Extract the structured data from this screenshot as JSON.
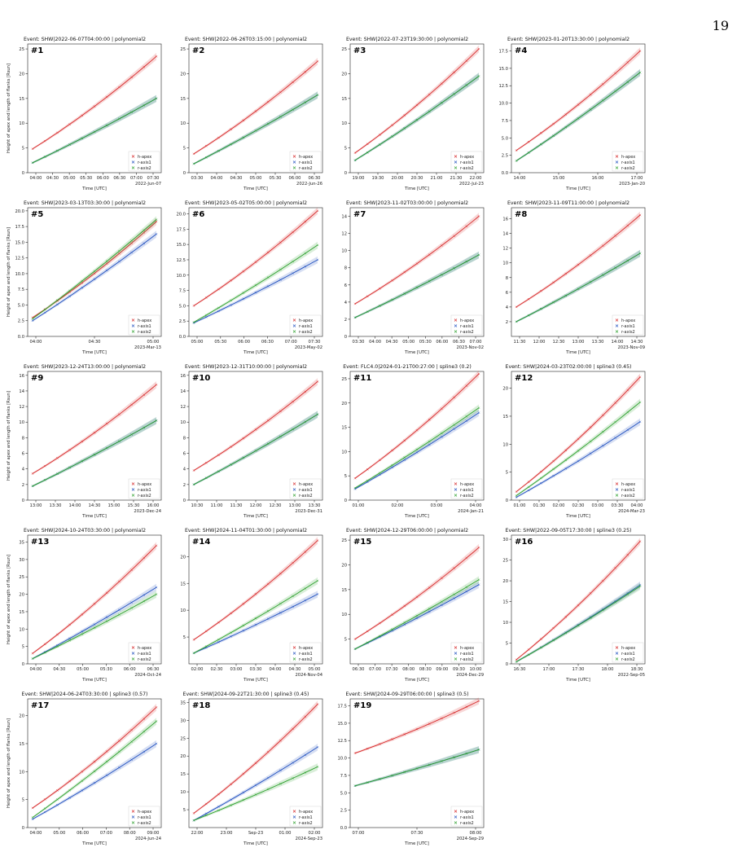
{
  "page_number": "19",
  "y_axis_label": "Height of apex and length of flanks [Rsun]",
  "x_axis_label": "Time [UTC]",
  "legend": [
    "h-apex",
    "r-axis1",
    "r-axis2"
  ],
  "colors": {
    "h_apex": "#d62728",
    "r_axis1": "#1f4fbf",
    "r_axis2": "#2ca02c"
  },
  "chart_data": [
    {
      "type": "line",
      "panel": "#1",
      "title": "Event: SHW|2022-06-07T04:00:00 | polynomial2",
      "date_label": "2022-Jun-07",
      "x_ticks": [
        "04:00",
        "04:30",
        "05:00",
        "05:30",
        "06:00",
        "06:30",
        "07:00",
        "07:30"
      ],
      "y_ticks": [
        "0",
        "5",
        "10",
        "15",
        "20",
        "25"
      ],
      "ylim": [
        0,
        26
      ],
      "series": [
        {
          "name": "h-apex",
          "values": [
            4.8,
            23.5
          ]
        },
        {
          "name": "r-axis1",
          "values": [
            2.0,
            15.0
          ]
        },
        {
          "name": "r-axis2",
          "values": [
            2.0,
            15.0
          ]
        }
      ]
    },
    {
      "type": "line",
      "panel": "#2",
      "title": "Event: SHW|2022-06-26T03:15:00 | polynomial2",
      "date_label": "2022-Jun-26",
      "x_ticks": [
        "03:30",
        "04:00",
        "04:30",
        "05:00",
        "05:30",
        "06:00",
        "06:30"
      ],
      "y_ticks": [
        "0",
        "5",
        "10",
        "15",
        "20",
        "25"
      ],
      "ylim": [
        0,
        26
      ],
      "series": [
        {
          "name": "h-apex",
          "values": [
            3.8,
            22.5
          ]
        },
        {
          "name": "r-axis1",
          "values": [
            1.8,
            15.7
          ]
        },
        {
          "name": "r-axis2",
          "values": [
            1.8,
            15.7
          ]
        }
      ]
    },
    {
      "type": "line",
      "panel": "#3",
      "title": "Event: SHW|2022-07-23T19:30:00 | polynomial2",
      "date_label": "2022-Jul-23",
      "x_ticks": [
        "19:00",
        "19:30",
        "20:00",
        "20:30",
        "21:00",
        "21:30",
        "22:00"
      ],
      "y_ticks": [
        "0",
        "5",
        "10",
        "15",
        "20",
        "25"
      ],
      "ylim": [
        0,
        26
      ],
      "series": [
        {
          "name": "h-apex",
          "values": [
            4.0,
            25.0
          ]
        },
        {
          "name": "r-axis1",
          "values": [
            2.5,
            19.5
          ]
        },
        {
          "name": "r-axis2",
          "values": [
            2.5,
            19.5
          ]
        }
      ]
    },
    {
      "type": "line",
      "panel": "#4",
      "title": "Event: SHW|2023-01-20T13:30:00 | polynomial2",
      "date_label": "2023-Jan-20",
      "x_ticks": [
        "14:00",
        "15:00",
        "16:00",
        "17:00"
      ],
      "y_ticks": [
        "0.0",
        "2.5",
        "5.0",
        "7.5",
        "10.0",
        "12.5",
        "15.0",
        "17.5"
      ],
      "ylim": [
        0,
        18.5
      ],
      "series": [
        {
          "name": "h-apex",
          "values": [
            3.2,
            17.5
          ]
        },
        {
          "name": "r-axis1",
          "values": [
            1.7,
            14.4
          ]
        },
        {
          "name": "r-axis2",
          "values": [
            1.7,
            14.4
          ]
        }
      ]
    },
    {
      "type": "line",
      "panel": "#5",
      "title": "Event: SHW|2023-03-13T03:30:00 | polynomial2",
      "date_label": "2023-Mar-13",
      "x_ticks": [
        "04:00",
        "04:30",
        "05:00"
      ],
      "y_ticks": [
        "0.0",
        "2.5",
        "5.0",
        "7.5",
        "10.0",
        "12.5",
        "15.0",
        "17.5",
        "20.0"
      ],
      "ylim": [
        0,
        20.5
      ],
      "series": [
        {
          "name": "h-apex",
          "values": [
            3.0,
            18.3
          ]
        },
        {
          "name": "r-axis1",
          "values": [
            2.5,
            16.3
          ]
        },
        {
          "name": "r-axis2",
          "values": [
            2.8,
            18.6
          ]
        }
      ]
    },
    {
      "type": "line",
      "panel": "#6",
      "title": "Event: SHW|2023-05-02T05:00:00 | polynomial2",
      "date_label": "2023-May-02",
      "x_ticks": [
        "05:00",
        "05:30",
        "06:00",
        "06:30",
        "07:00",
        "07:30"
      ],
      "y_ticks": [
        "0.0",
        "2.5",
        "5.0",
        "7.5",
        "10.0",
        "12.5",
        "15.0",
        "17.5",
        "20.0"
      ],
      "ylim": [
        0,
        21
      ],
      "series": [
        {
          "name": "h-apex",
          "values": [
            5.0,
            20.5
          ]
        },
        {
          "name": "r-axis1",
          "values": [
            2.2,
            12.5
          ]
        },
        {
          "name": "r-axis2",
          "values": [
            2.3,
            14.9
          ]
        }
      ]
    },
    {
      "type": "line",
      "panel": "#7",
      "title": "Event: SHW|2023-11-02T03:00:00 | polynomial2",
      "date_label": "2023-Nov-02",
      "x_ticks": [
        "03:30",
        "04:00",
        "04:30",
        "05:00",
        "05:30",
        "06:00",
        "06:30",
        "07:00"
      ],
      "y_ticks": [
        "0",
        "2",
        "4",
        "6",
        "8",
        "10",
        "12",
        "14"
      ],
      "ylim": [
        0,
        15
      ],
      "series": [
        {
          "name": "h-apex",
          "values": [
            3.8,
            14.0
          ]
        },
        {
          "name": "r-axis1",
          "values": [
            2.2,
            9.5
          ]
        },
        {
          "name": "r-axis2",
          "values": [
            2.2,
            9.5
          ]
        }
      ]
    },
    {
      "type": "line",
      "panel": "#8",
      "title": "Event: SHW|2023-11-09T11:00:00 | polynomial2",
      "date_label": "2023-Nov-09",
      "x_ticks": [
        "11:30",
        "12:00",
        "12:30",
        "13:00",
        "13:30",
        "14:00",
        "14:30"
      ],
      "y_ticks": [
        "2",
        "4",
        "6",
        "8",
        "10",
        "12",
        "14",
        "16"
      ],
      "ylim": [
        0,
        17.5
      ],
      "series": [
        {
          "name": "h-apex",
          "values": [
            4.0,
            16.5
          ]
        },
        {
          "name": "r-axis1",
          "values": [
            2.0,
            11.3
          ]
        },
        {
          "name": "r-axis2",
          "values": [
            2.0,
            11.3
          ]
        }
      ]
    },
    {
      "type": "line",
      "panel": "#9",
      "title": "Event: SHW|2023-12-24T13:00:00 | polynomial2",
      "date_label": "2023-Dec-24",
      "x_ticks": [
        "13:00",
        "13:30",
        "14:00",
        "14:30",
        "15:00",
        "15:30",
        "16:00"
      ],
      "y_ticks": [
        "0",
        "2",
        "4",
        "6",
        "8",
        "10",
        "12",
        "14",
        "16"
      ],
      "ylim": [
        0,
        16.5
      ],
      "series": [
        {
          "name": "h-apex",
          "values": [
            3.4,
            14.8
          ]
        },
        {
          "name": "r-axis1",
          "values": [
            1.8,
            10.2
          ]
        },
        {
          "name": "r-axis2",
          "values": [
            1.8,
            10.2
          ]
        }
      ]
    },
    {
      "type": "line",
      "panel": "#10",
      "title": "Event: SHW|2023-12-31T10:00:00 | polynomial2",
      "date_label": "2023-Dec-31",
      "x_ticks": [
        "10:30",
        "11:00",
        "11:30",
        "12:00",
        "12:30",
        "13:00",
        "13:30"
      ],
      "y_ticks": [
        "0",
        "2",
        "4",
        "6",
        "8",
        "10",
        "12",
        "14",
        "16"
      ],
      "ylim": [
        0,
        16.5
      ],
      "series": [
        {
          "name": "h-apex",
          "values": [
            3.8,
            15.2
          ]
        },
        {
          "name": "r-axis1",
          "values": [
            2.0,
            11.0
          ]
        },
        {
          "name": "r-axis2",
          "values": [
            2.0,
            11.0
          ]
        }
      ]
    },
    {
      "type": "line",
      "panel": "#11",
      "title": "Event: FLC4.0|2024-01-21T00:27:00 | spline3 (0.2)",
      "date_label": "2024-Jan-21",
      "x_ticks": [
        "01:00",
        "02:00",
        "03:00",
        "04:00"
      ],
      "y_ticks": [
        "0",
        "5",
        "10",
        "15",
        "20",
        "25"
      ],
      "ylim": [
        0,
        26.5
      ],
      "series": [
        {
          "name": "h-apex",
          "values": [
            4.5,
            26.0
          ]
        },
        {
          "name": "r-axis1",
          "values": [
            2.3,
            18.0
          ]
        },
        {
          "name": "r-axis2",
          "values": [
            2.5,
            19.0
          ]
        }
      ]
    },
    {
      "type": "line",
      "panel": "#12",
      "title": "Event: SHW|2024-03-23T02:00:00 | spline3 (0.45)",
      "date_label": "2024-Mar-23",
      "x_ticks": [
        "01:00",
        "01:30",
        "02:00",
        "02:30",
        "03:00",
        "03:30",
        "04:00"
      ],
      "y_ticks": [
        "0",
        "5",
        "10",
        "15",
        "20"
      ],
      "ylim": [
        0,
        23
      ],
      "series": [
        {
          "name": "h-apex",
          "values": [
            1.5,
            22.0
          ]
        },
        {
          "name": "r-axis1",
          "values": [
            0.5,
            14.0
          ]
        },
        {
          "name": "r-axis2",
          "values": [
            0.8,
            17.5
          ]
        }
      ]
    },
    {
      "type": "line",
      "panel": "#13",
      "title": "Event: SHW|2024-10-24T03:30:00 | polynomial2",
      "date_label": "2024-Oct-24",
      "x_ticks": [
        "04:00",
        "04:30",
        "05:00",
        "05:30",
        "06:00",
        "06:30"
      ],
      "y_ticks": [
        "0",
        "5",
        "10",
        "15",
        "20",
        "25",
        "30",
        "35"
      ],
      "ylim": [
        0,
        37
      ],
      "series": [
        {
          "name": "h-apex",
          "values": [
            3.0,
            34.0
          ]
        },
        {
          "name": "r-axis1",
          "values": [
            1.5,
            22.0
          ]
        },
        {
          "name": "r-axis2",
          "values": [
            1.5,
            20.0
          ]
        }
      ]
    },
    {
      "type": "line",
      "panel": "#14",
      "title": "Event: SHW|2024-11-04T01:30:00 | polynomial2",
      "date_label": "2024-Nov-04",
      "x_ticks": [
        "02:00",
        "02:30",
        "03:00",
        "03:30",
        "04:00",
        "04:30",
        "05:00"
      ],
      "y_ticks": [
        "5",
        "10",
        "15",
        "20"
      ],
      "ylim": [
        0,
        24
      ],
      "series": [
        {
          "name": "h-apex",
          "values": [
            4.5,
            23.0
          ]
        },
        {
          "name": "r-axis1",
          "values": [
            2.0,
            13.0
          ]
        },
        {
          "name": "r-axis2",
          "values": [
            2.0,
            15.5
          ]
        }
      ]
    },
    {
      "type": "line",
      "panel": "#15",
      "title": "Event: SHW|2024-12-29T06:00:00 | polynomial2",
      "date_label": "2024-Dec-29",
      "x_ticks": [
        "06:30",
        "07:00",
        "07:30",
        "08:00",
        "08:30",
        "09:00",
        "09:30",
        "10:00"
      ],
      "y_ticks": [
        "5",
        "10",
        "15",
        "20",
        "25"
      ],
      "ylim": [
        0,
        26
      ],
      "series": [
        {
          "name": "h-apex",
          "values": [
            5.0,
            23.5
          ]
        },
        {
          "name": "r-axis1",
          "values": [
            3.0,
            16.0
          ]
        },
        {
          "name": "r-axis2",
          "values": [
            3.0,
            17.0
          ]
        }
      ]
    },
    {
      "type": "line",
      "panel": "#16",
      "title": "Event: SHW|2022-09-05T17:30:00 | spline3 (0.25)",
      "date_label": "2022-Sep-05",
      "x_ticks": [
        "16:30",
        "17:00",
        "17:30",
        "18:00",
        "18:30"
      ],
      "y_ticks": [
        "0",
        "5",
        "10",
        "15",
        "20",
        "25",
        "30"
      ],
      "ylim": [
        0,
        31
      ],
      "series": [
        {
          "name": "h-apex",
          "values": [
            1.0,
            29.5
          ]
        },
        {
          "name": "r-axis1",
          "values": [
            0.5,
            19.0
          ]
        },
        {
          "name": "r-axis2",
          "values": [
            0.5,
            18.7
          ]
        }
      ]
    },
    {
      "type": "line",
      "panel": "#17",
      "title": "Event: SHW|2024-06-24T03:30:00 | spline3 (0.57)",
      "date_label": "2024-Jun-24",
      "x_ticks": [
        "04:00",
        "05:00",
        "06:00",
        "07:00",
        "08:00",
        "09:00"
      ],
      "y_ticks": [
        "0",
        "5",
        "10",
        "15",
        "20"
      ],
      "ylim": [
        0,
        23
      ],
      "series": [
        {
          "name": "h-apex",
          "values": [
            3.5,
            21.5
          ]
        },
        {
          "name": "r-axis1",
          "values": [
            1.5,
            15.0
          ]
        },
        {
          "name": "r-axis2",
          "values": [
            1.8,
            19.0
          ]
        }
      ]
    },
    {
      "type": "line",
      "panel": "#18",
      "title": "Event: SHW|2024-09-22T21:30:00 | spline3 (0.45)",
      "date_label": "2024-Sep-23",
      "x_ticks": [
        "22:00",
        "23:00",
        "Sep-23",
        "01:00",
        "02:00"
      ],
      "y_ticks": [
        "5",
        "10",
        "15",
        "20",
        "25",
        "30",
        "35"
      ],
      "ylim": [
        0,
        36
      ],
      "series": [
        {
          "name": "h-apex",
          "values": [
            4.0,
            34.5
          ]
        },
        {
          "name": "r-axis1",
          "values": [
            2.0,
            22.5
          ]
        },
        {
          "name": "r-axis2",
          "values": [
            2.0,
            17.0
          ]
        }
      ]
    },
    {
      "type": "line",
      "panel": "#19",
      "title": "Event: SHW|2024-09-29T06:00:00 | spline3 (0.5)",
      "date_label": "2024-Sep-29",
      "x_ticks": [
        "07:00",
        "07:30",
        "08:00"
      ],
      "y_ticks": [
        "0.0",
        "2.5",
        "5.0",
        "7.5",
        "10.0",
        "12.5",
        "15.0",
        "17.5"
      ],
      "ylim": [
        0,
        18.5
      ],
      "series": [
        {
          "name": "h-apex",
          "values": [
            10.7,
            18.2
          ]
        },
        {
          "name": "r-axis1",
          "values": [
            6.0,
            11.2
          ]
        },
        {
          "name": "r-axis2",
          "values": [
            6.0,
            11.2
          ]
        }
      ]
    }
  ]
}
